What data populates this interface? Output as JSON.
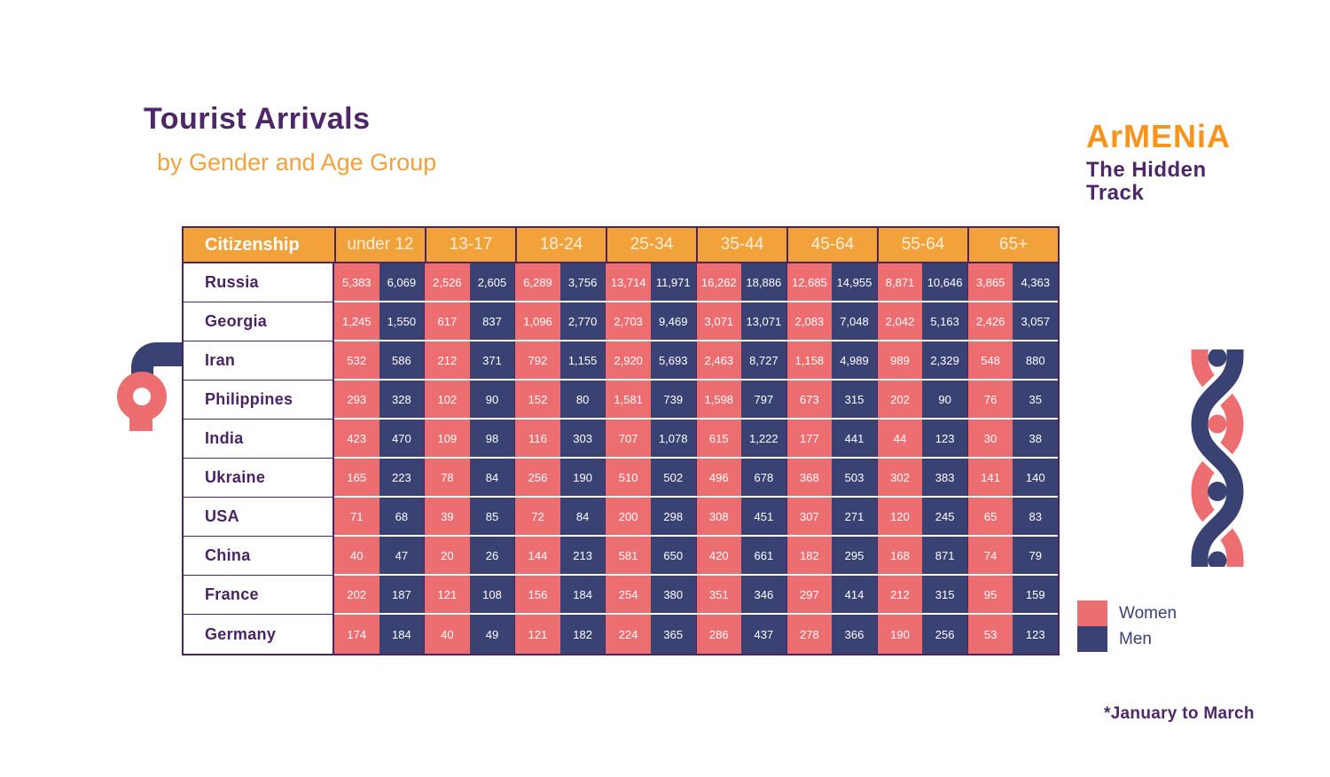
{
  "page": {
    "title": "Tourist Arrivals",
    "subtitle": "by Gender and Age Group",
    "footnote": "*January to March"
  },
  "logo": {
    "brand": "ArMENiA",
    "tagline_line1": "The Hidden",
    "tagline_line2": "Track"
  },
  "legend": {
    "women_label": "Women",
    "men_label": "Men"
  },
  "colors": {
    "women_pink": "#ED6E71",
    "men_blue": "#3A4274",
    "header_orange": "#F2A23B",
    "brand_orange": "#F6941E",
    "purple": "#4E2768"
  },
  "chart_data": {
    "type": "table",
    "title": "Tourist Arrivals by Gender and Age Group",
    "citizenship_header": "Citizenship",
    "age_groups": [
      "under 12",
      "13-17",
      "18-24",
      "25-34",
      "35-44",
      "45-64",
      "55-64",
      "65+"
    ],
    "series_labels": [
      "Women",
      "Men"
    ],
    "rows": [
      {
        "citizenship": "Russia",
        "values": [
          [
            "5,383",
            "6,069"
          ],
          [
            "2,526",
            "2,605"
          ],
          [
            "6,289",
            "3,756"
          ],
          [
            "13,714",
            "11,971"
          ],
          [
            "16,262",
            "18,886"
          ],
          [
            "12,685",
            "14,955"
          ],
          [
            "8,871",
            "10,646"
          ],
          [
            "3,865",
            "4,363"
          ]
        ]
      },
      {
        "citizenship": "Georgia",
        "values": [
          [
            "1,245",
            "1,550"
          ],
          [
            "617",
            "837"
          ],
          [
            "1,096",
            "2,770"
          ],
          [
            "2,703",
            "9,469"
          ],
          [
            "3,071",
            "13,071"
          ],
          [
            "2,083",
            "7,048"
          ],
          [
            "2,042",
            "5,163"
          ],
          [
            "2,426",
            "3,057"
          ]
        ]
      },
      {
        "citizenship": "Iran",
        "values": [
          [
            "532",
            "586"
          ],
          [
            "212",
            "371"
          ],
          [
            "792",
            "1,155"
          ],
          [
            "2,920",
            "5,693"
          ],
          [
            "2,463",
            "8,727"
          ],
          [
            "1,158",
            "4,989"
          ],
          [
            "989",
            "2,329"
          ],
          [
            "548",
            "880"
          ]
        ]
      },
      {
        "citizenship": "Philippines",
        "values": [
          [
            "293",
            "328"
          ],
          [
            "102",
            "90"
          ],
          [
            "152",
            "80"
          ],
          [
            "1,581",
            "739"
          ],
          [
            "1,598",
            "797"
          ],
          [
            "673",
            "315"
          ],
          [
            "202",
            "90"
          ],
          [
            "76",
            "35"
          ]
        ]
      },
      {
        "citizenship": "India",
        "values": [
          [
            "423",
            "470"
          ],
          [
            "109",
            "98"
          ],
          [
            "116",
            "303"
          ],
          [
            "707",
            "1,078"
          ],
          [
            "615",
            "1,222"
          ],
          [
            "177",
            "441"
          ],
          [
            "44",
            "123"
          ],
          [
            "30",
            "38"
          ]
        ]
      },
      {
        "citizenship": "Ukraine",
        "values": [
          [
            "165",
            "223"
          ],
          [
            "78",
            "84"
          ],
          [
            "256",
            "190"
          ],
          [
            "510",
            "502"
          ],
          [
            "496",
            "678"
          ],
          [
            "368",
            "503"
          ],
          [
            "302",
            "383"
          ],
          [
            "141",
            "140"
          ]
        ]
      },
      {
        "citizenship": "USA",
        "values": [
          [
            "71",
            "68"
          ],
          [
            "39",
            "85"
          ],
          [
            "72",
            "84"
          ],
          [
            "200",
            "298"
          ],
          [
            "308",
            "451"
          ],
          [
            "307",
            "271"
          ],
          [
            "120",
            "245"
          ],
          [
            "65",
            "83"
          ]
        ]
      },
      {
        "citizenship": "China",
        "values": [
          [
            "40",
            "47"
          ],
          [
            "20",
            "26"
          ],
          [
            "144",
            "213"
          ],
          [
            "581",
            "650"
          ],
          [
            "420",
            "661"
          ],
          [
            "182",
            "295"
          ],
          [
            "168",
            "871"
          ],
          [
            "74",
            "79"
          ]
        ]
      },
      {
        "citizenship": "France",
        "values": [
          [
            "202",
            "187"
          ],
          [
            "121",
            "108"
          ],
          [
            "156",
            "184"
          ],
          [
            "254",
            "380"
          ],
          [
            "351",
            "346"
          ],
          [
            "297",
            "414"
          ],
          [
            "212",
            "315"
          ],
          [
            "95",
            "159"
          ]
        ]
      },
      {
        "citizenship": "Germany",
        "values": [
          [
            "174",
            "184"
          ],
          [
            "40",
            "49"
          ],
          [
            "121",
            "182"
          ],
          [
            "224",
            "365"
          ],
          [
            "286",
            "437"
          ],
          [
            "278",
            "366"
          ],
          [
            "190",
            "256"
          ],
          [
            "53",
            "123"
          ]
        ]
      }
    ],
    "footnote": "*January to March"
  }
}
